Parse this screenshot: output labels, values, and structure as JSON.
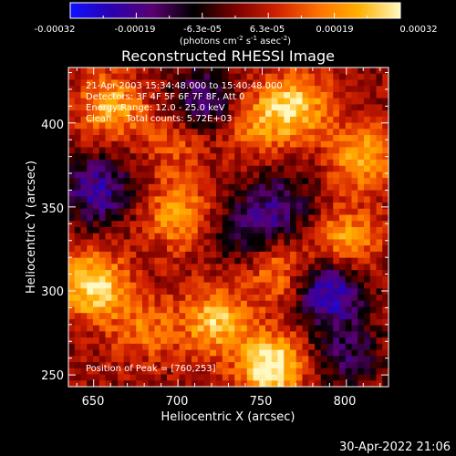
{
  "chart_data": {
    "type": "heatmap",
    "title": "Reconstructed RHESSI Image",
    "xlabel": "Heliocentric X (arcsec)",
    "ylabel": "Heliocentric Y (arcsec)",
    "xlim": [
      635,
      825
    ],
    "ylim": [
      243,
      433
    ],
    "x_ticks": [
      650,
      700,
      750,
      800
    ],
    "y_ticks": [
      250,
      300,
      350,
      400
    ],
    "colorbar": {
      "range": [
        -0.00032,
        0.00032
      ],
      "ticks": [
        "-0.00032",
        "-0.00019",
        "-6.3e-05",
        "6.3e-05",
        "0.00019",
        "0.00032"
      ],
      "label": "(photons cm",
      "label_sup1": "-2",
      "label_mid": " s",
      "label_sup2": "-1",
      "label_mid2": " asec",
      "label_sup3": "-2",
      "label_end": ")",
      "colors": [
        "#1010ff",
        "#2a00b0",
        "#5a0070",
        "#000000",
        "#7a0000",
        "#d02000",
        "#ff7000",
        "#ffb000",
        "#fff8c0"
      ]
    },
    "annotations": [
      "21-Apr-2003 15:34:48.000 to 15:40:48.000",
      "Detectors: 3F 4F 5F 6F 7F 8F, Att 0",
      "Energy Range: 12.0 - 25.0 keV",
      "Clean     Total counts: 5.72E+03"
    ],
    "peak_label": "Position of Peak = [760,253]",
    "peak": [
      760,
      253
    ],
    "hot_spots": [
      {
        "x": 650,
        "y": 303,
        "v": 0.0003
      },
      {
        "x": 755,
        "y": 255,
        "v": 0.00032
      },
      {
        "x": 660,
        "y": 410,
        "v": 0.00022
      },
      {
        "x": 722,
        "y": 282,
        "v": 0.00024
      },
      {
        "x": 700,
        "y": 345,
        "v": 0.0002
      },
      {
        "x": 770,
        "y": 410,
        "v": 0.00025
      },
      {
        "x": 810,
        "y": 380,
        "v": 0.00022
      },
      {
        "x": 800,
        "y": 330,
        "v": 0.0002
      },
      {
        "x": 745,
        "y": 400,
        "v": 0.00016
      },
      {
        "x": 760,
        "y": 312,
        "v": 0.00016
      },
      {
        "x": 680,
        "y": 278,
        "v": 0.00014
      },
      {
        "x": 700,
        "y": 390,
        "v": 0.00012
      }
    ],
    "cold_spots": [
      {
        "x": 715,
        "y": 412,
        "v": -0.00022
      },
      {
        "x": 652,
        "y": 360,
        "v": -0.00024
      },
      {
        "x": 790,
        "y": 300,
        "v": -0.0003
      },
      {
        "x": 760,
        "y": 350,
        "v": -0.00018
      },
      {
        "x": 800,
        "y": 262,
        "v": -0.00016
      },
      {
        "x": 740,
        "y": 335,
        "v": -0.00014
      }
    ]
  },
  "footer": {
    "date": "30-Apr-2022 21:06"
  }
}
